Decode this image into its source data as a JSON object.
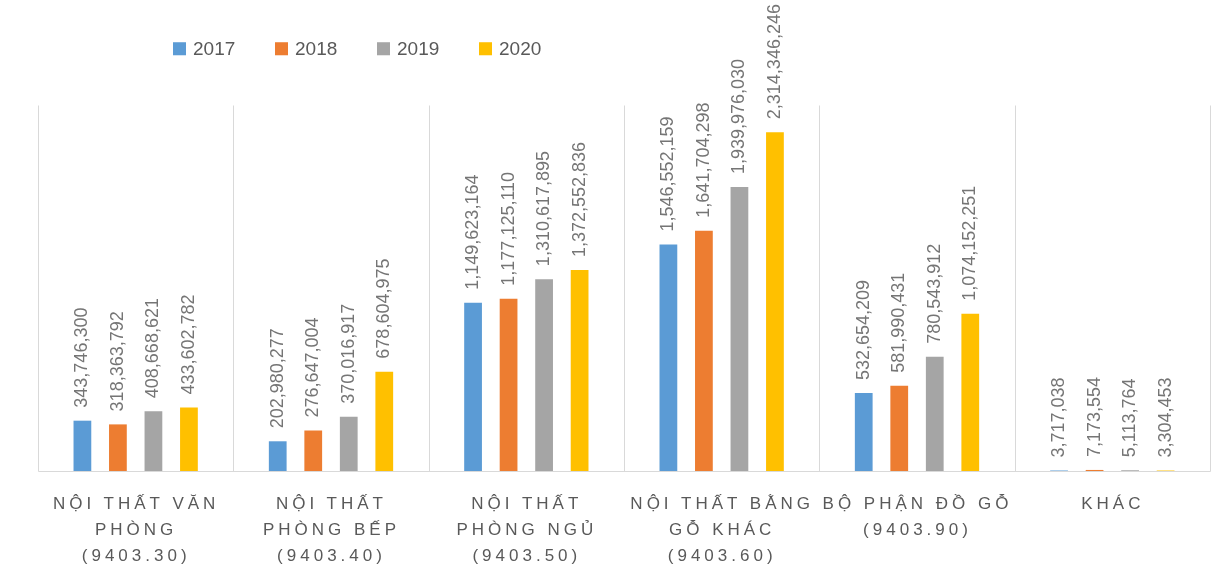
{
  "chart_data": {
    "type": "bar",
    "categories": [
      "NỘI THẤT VĂN PHÒNG (9403.30)",
      "NỘI THẤT PHÒNG BẾP (9403.40)",
      "NỘI THẤT PHÒNG NGỦ (9403.50)",
      "NỘI THẤT BẰNG GỖ KHÁC (9403.60)",
      "BỘ PHẬN ĐỒ GỖ (9403.90)",
      "KHÁC"
    ],
    "series": [
      {
        "name": "2017",
        "color": "#5b9bd5",
        "values": [
          343746300,
          202980277,
          1149623164,
          1546552159,
          532654209,
          3717038
        ],
        "value_labels": [
          "343,746,300",
          "202,980,277",
          "1,149,623,164",
          "1,546,552,159",
          "532,654,209",
          "3,717,038"
        ]
      },
      {
        "name": "2018",
        "color": "#ed7d31",
        "values": [
          318363792,
          276647004,
          1177125110,
          1641704298,
          581990431,
          7173554
        ],
        "value_labels": [
          "318,363,792",
          "276,647,004",
          "1,177,125,110",
          "1,641,704,298",
          "581,990,431",
          "7,173,554"
        ]
      },
      {
        "name": "2019",
        "color": "#a5a5a5",
        "values": [
          408668621,
          370016917,
          1310617895,
          1939976030,
          780543912,
          5113764
        ],
        "value_labels": [
          "408,668,621",
          "370,016,917",
          "1,310,617,895",
          "1,939,976,030",
          "780,543,912",
          "5,113,764"
        ]
      },
      {
        "name": "2020",
        "color": "#ffc000",
        "values": [
          433602782,
          678604975,
          1372552836,
          2314346246,
          1074152251,
          3304453
        ],
        "value_labels": [
          "433,602,782",
          "678,604,975",
          "1,372,552,836",
          "2,314,346,246",
          "1,074,152,251",
          "3,304,453"
        ]
      }
    ],
    "legend": "top left",
    "grid": "x",
    "tick_labels": "x"
  }
}
